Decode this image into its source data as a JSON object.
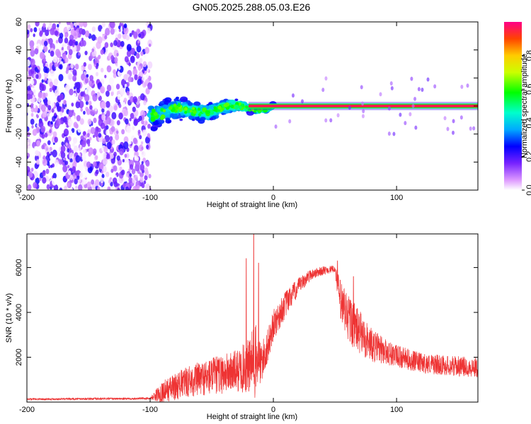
{
  "title": "GN05.2025.288.05.03.E26",
  "colors": {
    "axis": "#000000",
    "snr_line": "#ee3333",
    "trace": "#ee2255"
  },
  "chart_data": [
    {
      "type": "heatmap",
      "name": "spectrogram",
      "xlabel": "Height of straight line (km)",
      "ylabel": "Frequency (Hz)",
      "xlim": [
        -200,
        166
      ],
      "ylim": [
        -60,
        60
      ],
      "xticks": [
        -200,
        -100,
        0,
        100
      ],
      "yticks": [
        60,
        40,
        20,
        0,
        -20,
        -40,
        -60
      ],
      "colorbar": {
        "label": "Normalized spectral amplitude",
        "range": [
          0.0,
          1.0
        ],
        "ticks": [
          0.0,
          0.2,
          0.4,
          0.6,
          0.8
        ]
      },
      "regions": [
        {
          "x_from": -200,
          "x_to": -100,
          "desc": "broadband noise",
          "amplitude_range": [
            0.0,
            0.25
          ]
        },
        {
          "x_from": -100,
          "x_to": 0,
          "desc": "narrowing band around 0 Hz",
          "freq_center_start": -5,
          "freq_center_end": 0
        },
        {
          "x_from": 0,
          "x_to": 166,
          "desc": "steady line at 0 Hz",
          "amplitude": 1.0
        }
      ]
    },
    {
      "type": "line",
      "name": "snr",
      "xlabel": "Height of straight line (km)",
      "ylabel": "SNR (10 * v/v)",
      "xlim": [
        -200,
        166
      ],
      "ylim": [
        0,
        7500
      ],
      "xticks": [
        -200,
        -100,
        0,
        100
      ],
      "yticks": [
        2000,
        4000,
        6000
      ],
      "envelope": {
        "x": [
          -200,
          -160,
          -120,
          -100,
          -90,
          -70,
          -50,
          -30,
          -20,
          -15,
          -10,
          -5,
          0,
          10,
          20,
          30,
          40,
          50,
          55,
          60,
          70,
          80,
          90,
          100,
          120,
          140,
          166
        ],
        "base": [
          120,
          130,
          140,
          150,
          300,
          700,
          900,
          1100,
          1200,
          1300,
          1400,
          2200,
          3200,
          4200,
          5000,
          5600,
          5800,
          5900,
          4000,
          3500,
          2800,
          2300,
          2100,
          1900,
          1600,
          1500,
          1400
        ],
        "amp": [
          80,
          90,
          90,
          100,
          1000,
          1400,
          1700,
          1900,
          2500,
          3500,
          2000,
          1500,
          1400,
          1200,
          800,
          500,
          400,
          300,
          2200,
          2300,
          2000,
          1500,
          1200,
          1000,
          900,
          900,
          900
        ]
      },
      "spikes": [
        {
          "x": -16,
          "y": 7500
        },
        {
          "x": -22,
          "y": 6400
        },
        {
          "x": -12,
          "y": 6200
        },
        {
          "x": 52,
          "y": 6300
        },
        {
          "x": 65,
          "y": 5600
        }
      ]
    }
  ]
}
